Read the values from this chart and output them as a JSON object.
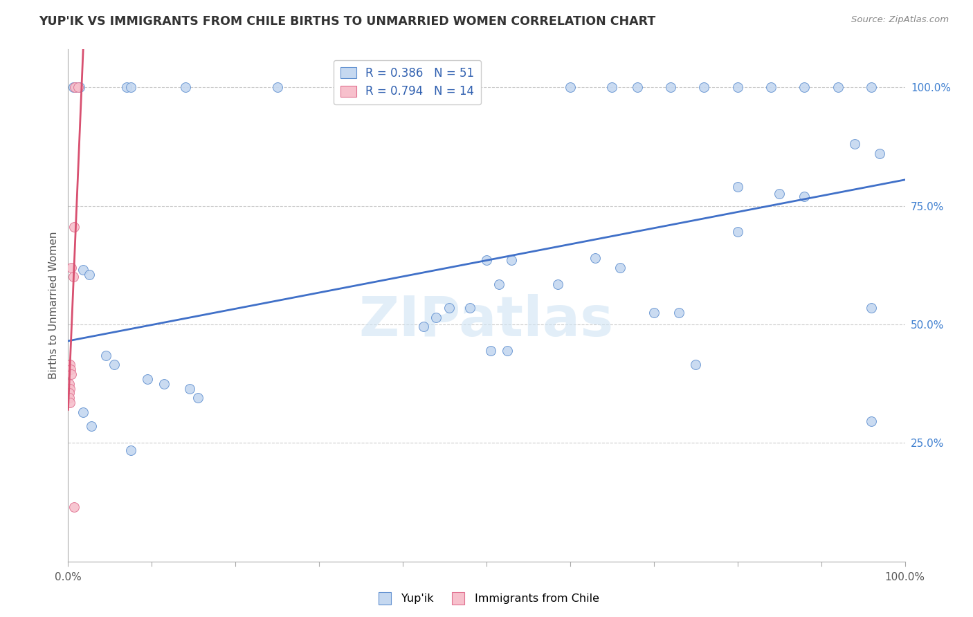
{
  "title": "YUP'IK VS IMMIGRANTS FROM CHILE BIRTHS TO UNMARRIED WOMEN CORRELATION CHART",
  "source": "Source: ZipAtlas.com",
  "ylabel": "Births to Unmarried Women",
  "watermark": "ZIPatlas",
  "xlim": [
    0,
    1.0
  ],
  "ylim": [
    0,
    1.08
  ],
  "xtick_positions": [
    0.0,
    0.1,
    0.2,
    0.3,
    0.4,
    0.5,
    0.6,
    0.7,
    0.8,
    0.9,
    1.0
  ],
  "ytick_positions": [
    0.0,
    0.25,
    0.5,
    0.75,
    1.0
  ],
  "ytick_labels": [
    "",
    "25.0%",
    "50.0%",
    "75.0%",
    "100.0%"
  ],
  "blue_R": 0.386,
  "blue_N": 51,
  "pink_R": 0.794,
  "pink_N": 14,
  "blue_fill": "#c5d8f0",
  "pink_fill": "#f7c0cc",
  "blue_edge": "#6090d0",
  "pink_edge": "#e07090",
  "blue_line_color": "#4070c8",
  "pink_line_color": "#d85070",
  "blue_scatter": [
    [
      0.006,
      1.0
    ],
    [
      0.009,
      1.0
    ],
    [
      0.014,
      1.0
    ],
    [
      0.07,
      1.0
    ],
    [
      0.075,
      1.0
    ],
    [
      0.14,
      1.0
    ],
    [
      0.25,
      1.0
    ],
    [
      0.6,
      1.0
    ],
    [
      0.65,
      1.0
    ],
    [
      0.68,
      1.0
    ],
    [
      0.72,
      1.0
    ],
    [
      0.76,
      1.0
    ],
    [
      0.8,
      1.0
    ],
    [
      0.84,
      1.0
    ],
    [
      0.88,
      1.0
    ],
    [
      0.92,
      1.0
    ],
    [
      0.96,
      1.0
    ],
    [
      0.94,
      0.88
    ],
    [
      0.97,
      0.86
    ],
    [
      0.8,
      0.79
    ],
    [
      0.85,
      0.775
    ],
    [
      0.88,
      0.77
    ],
    [
      0.8,
      0.695
    ],
    [
      0.96,
      0.535
    ],
    [
      0.63,
      0.64
    ],
    [
      0.66,
      0.62
    ],
    [
      0.5,
      0.635
    ],
    [
      0.53,
      0.635
    ],
    [
      0.515,
      0.585
    ],
    [
      0.455,
      0.535
    ],
    [
      0.48,
      0.535
    ],
    [
      0.44,
      0.515
    ],
    [
      0.425,
      0.495
    ],
    [
      0.505,
      0.445
    ],
    [
      0.525,
      0.445
    ],
    [
      0.585,
      0.585
    ],
    [
      0.7,
      0.525
    ],
    [
      0.73,
      0.525
    ],
    [
      0.75,
      0.415
    ],
    [
      0.96,
      0.295
    ],
    [
      0.018,
      0.615
    ],
    [
      0.025,
      0.605
    ],
    [
      0.045,
      0.435
    ],
    [
      0.055,
      0.415
    ],
    [
      0.095,
      0.385
    ],
    [
      0.115,
      0.375
    ],
    [
      0.145,
      0.365
    ],
    [
      0.155,
      0.345
    ],
    [
      0.018,
      0.315
    ],
    [
      0.028,
      0.285
    ],
    [
      0.075,
      0.235
    ]
  ],
  "pink_scatter": [
    [
      0.008,
      1.0
    ],
    [
      0.012,
      1.0
    ],
    [
      0.007,
      0.705
    ],
    [
      0.004,
      0.62
    ],
    [
      0.006,
      0.6
    ],
    [
      0.002,
      0.415
    ],
    [
      0.003,
      0.405
    ],
    [
      0.004,
      0.395
    ],
    [
      0.0015,
      0.375
    ],
    [
      0.0025,
      0.365
    ],
    [
      0.001,
      0.355
    ],
    [
      0.0015,
      0.345
    ],
    [
      0.0025,
      0.335
    ],
    [
      0.007,
      0.115
    ]
  ],
  "blue_line_x": [
    0.0,
    1.0
  ],
  "blue_line_y": [
    0.465,
    0.805
  ],
  "pink_line_x": [
    0.0,
    0.018
  ],
  "pink_line_y": [
    0.32,
    1.08
  ],
  "figsize": [
    14.06,
    8.92
  ],
  "dpi": 100
}
